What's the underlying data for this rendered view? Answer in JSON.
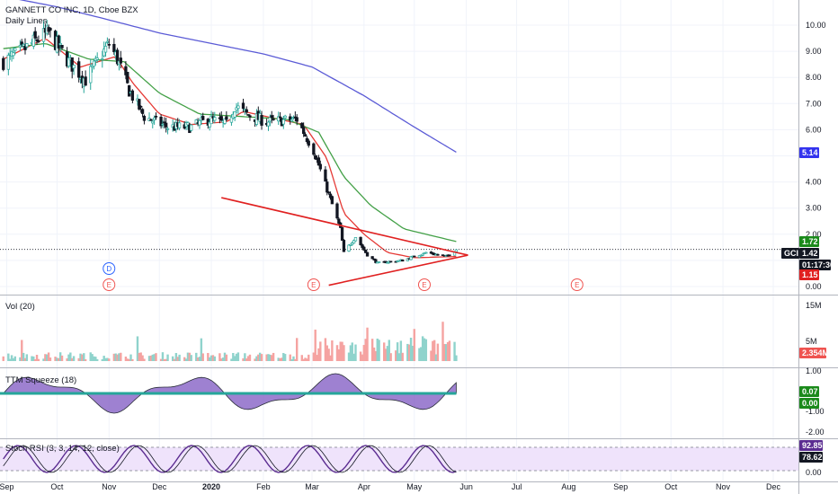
{
  "header": {
    "title": "GANNETT CO INC, 1D, Cboe BZX",
    "subtitle": "Daily Lines"
  },
  "colors": {
    "up": "#26a69a",
    "down": "#ef5350",
    "sma_fast": "#e53935",
    "sma_mid": "#43a047",
    "sma_slow": "#5b5bd6",
    "trendline": "#e02020",
    "squeeze_fill": "#7e57c2",
    "stoch_k": "#5b2c91",
    "stoch_bg": "#efe3fb"
  },
  "price_axis": {
    "ticks": [
      "10.00",
      "9.00",
      "8.00",
      "7.00",
      "6.00",
      "4.00",
      "3.00",
      "2.00",
      "0.00"
    ],
    "badges": [
      {
        "label": "5.14",
        "bg": "#3333ee",
        "fg": "#ffffff"
      },
      {
        "label": "1.72",
        "bg": "#1b8a1b",
        "fg": "#ffffff"
      },
      {
        "label": "GCI",
        "bg": "#131722",
        "fg": "#ffffff"
      },
      {
        "label": "1.42",
        "bg": "#131722",
        "fg": "#ffffff"
      },
      {
        "label": "01:17:30",
        "bg": "#131722",
        "fg": "#ffffff"
      },
      {
        "label": "1.15",
        "bg": "#e02020",
        "fg": "#ffffff"
      }
    ]
  },
  "time_axis": {
    "labels": [
      "Sep",
      "Oct",
      "Nov",
      "Dec",
      "2020",
      "Feb",
      "Mar",
      "Apr",
      "May",
      "Jun",
      "Jul",
      "Aug",
      "Sep",
      "Oct",
      "Nov",
      "Dec"
    ]
  },
  "events": [
    {
      "label": "D"
    },
    {
      "label": "E"
    },
    {
      "label": "E"
    },
    {
      "label": "E"
    },
    {
      "label": "E"
    }
  ],
  "volume_panel": {
    "title": "Vol (20)",
    "ticks": [
      "15M",
      "5M"
    ],
    "badge": "2.354M"
  },
  "squeeze_panel": {
    "title": "TTM Squeeze (18)",
    "ticks": [
      "1.00",
      "-1.00",
      "-2.00"
    ],
    "badges": [
      "0.07",
      "0.00"
    ]
  },
  "stoch_panel": {
    "title": "Stoch RSI (3, 3, 14, 12, close)",
    "ticks": [
      "0.00"
    ],
    "badges": [
      "92.85",
      "78.62"
    ]
  },
  "chart_data": {
    "type": "line",
    "title": "GANNETT CO INC, 1D, Cboe BZX",
    "x_range": [
      "2019-09",
      "2020-12"
    ],
    "price_ylim": [
      0,
      10.5
    ],
    "grid": true,
    "price_anchors": [
      [
        "2019-08-30",
        8.6
      ],
      [
        "2019-09-10",
        9.0
      ],
      [
        "2019-09-20",
        9.5
      ],
      [
        "2019-09-26",
        9.7
      ],
      [
        "2019-10-08",
        8.6
      ],
      [
        "2019-10-18",
        7.9
      ],
      [
        "2019-11-01",
        9.3
      ],
      [
        "2019-11-06",
        8.7
      ],
      [
        "2019-11-13",
        7.5
      ],
      [
        "2019-11-22",
        6.5
      ],
      [
        "2019-12-06",
        6.1
      ],
      [
        "2019-12-20",
        6.1
      ],
      [
        "2019-12-31",
        6.4
      ],
      [
        "2020-01-10",
        6.2
      ],
      [
        "2020-01-15",
        6.9
      ],
      [
        "2020-01-22",
        6.6
      ],
      [
        "2020-02-03",
        6.3
      ],
      [
        "2020-02-21",
        6.4
      ],
      [
        "2020-03-02",
        5.2
      ],
      [
        "2020-03-09",
        3.9
      ],
      [
        "2020-03-18",
        2.2
      ],
      [
        "2020-03-20",
        1.3
      ],
      [
        "2020-03-27",
        1.9
      ],
      [
        "2020-04-03",
        1.2
      ],
      [
        "2020-04-09",
        0.9
      ],
      [
        "2020-04-24",
        1.0
      ],
      [
        "2020-05-08",
        1.3
      ],
      [
        "2020-05-20",
        1.15
      ],
      [
        "2020-05-26",
        1.42
      ]
    ],
    "series": [
      {
        "name": "",
        "color": "#e53935",
        "anchors": [
          [
            "2019-08-30",
            8.7
          ],
          [
            "2019-09-24",
            9.5
          ],
          [
            "2019-10-15",
            8.4
          ],
          [
            "2019-11-05",
            8.8
          ],
          [
            "2019-11-15",
            7.8
          ],
          [
            "2019-12-01",
            6.6
          ],
          [
            "2019-12-20",
            6.2
          ],
          [
            "2020-01-10",
            6.3
          ],
          [
            "2020-01-20",
            6.7
          ],
          [
            "2020-02-10",
            6.4
          ],
          [
            "2020-02-25",
            6.2
          ],
          [
            "2020-03-10",
            4.9
          ],
          [
            "2020-03-20",
            2.8
          ],
          [
            "2020-04-01",
            2.0
          ],
          [
            "2020-04-15",
            1.3
          ],
          [
            "2020-05-01",
            1.1
          ],
          [
            "2020-05-26",
            1.15
          ]
        ]
      },
      {
        "name": "",
        "color": "#43a047",
        "anchors": [
          [
            "2019-08-30",
            9.1
          ],
          [
            "2019-09-24",
            9.3
          ],
          [
            "2019-10-20",
            8.7
          ],
          [
            "2019-11-10",
            8.6
          ],
          [
            "2019-12-01",
            7.4
          ],
          [
            "2019-12-25",
            6.6
          ],
          [
            "2020-01-20",
            6.5
          ],
          [
            "2020-02-15",
            6.4
          ],
          [
            "2020-03-05",
            5.9
          ],
          [
            "2020-03-20",
            4.2
          ],
          [
            "2020-04-05",
            3.1
          ],
          [
            "2020-04-25",
            2.2
          ],
          [
            "2020-05-26",
            1.72
          ]
        ]
      },
      {
        "name": "",
        "color": "#5b5bd6",
        "anchors": [
          [
            "2019-08-30",
            11.1
          ],
          [
            "2019-10-01",
            10.7
          ],
          [
            "2019-11-01",
            10.2
          ],
          [
            "2019-12-01",
            9.7
          ],
          [
            "2020-01-01",
            9.3
          ],
          [
            "2020-02-01",
            8.9
          ],
          [
            "2020-03-01",
            8.4
          ],
          [
            "2020-04-01",
            7.3
          ],
          [
            "2020-05-01",
            6.1
          ],
          [
            "2020-05-26",
            5.14
          ]
        ]
      }
    ],
    "trendlines": [
      {
        "from": [
          "2020-01-07",
          3.4
        ],
        "to": [
          "2020-06-02",
          1.2
        ]
      },
      {
        "from": [
          "2020-03-11",
          0.05
        ],
        "to": [
          "2020-06-02",
          1.2
        ]
      }
    ],
    "last_price": 1.42
  }
}
